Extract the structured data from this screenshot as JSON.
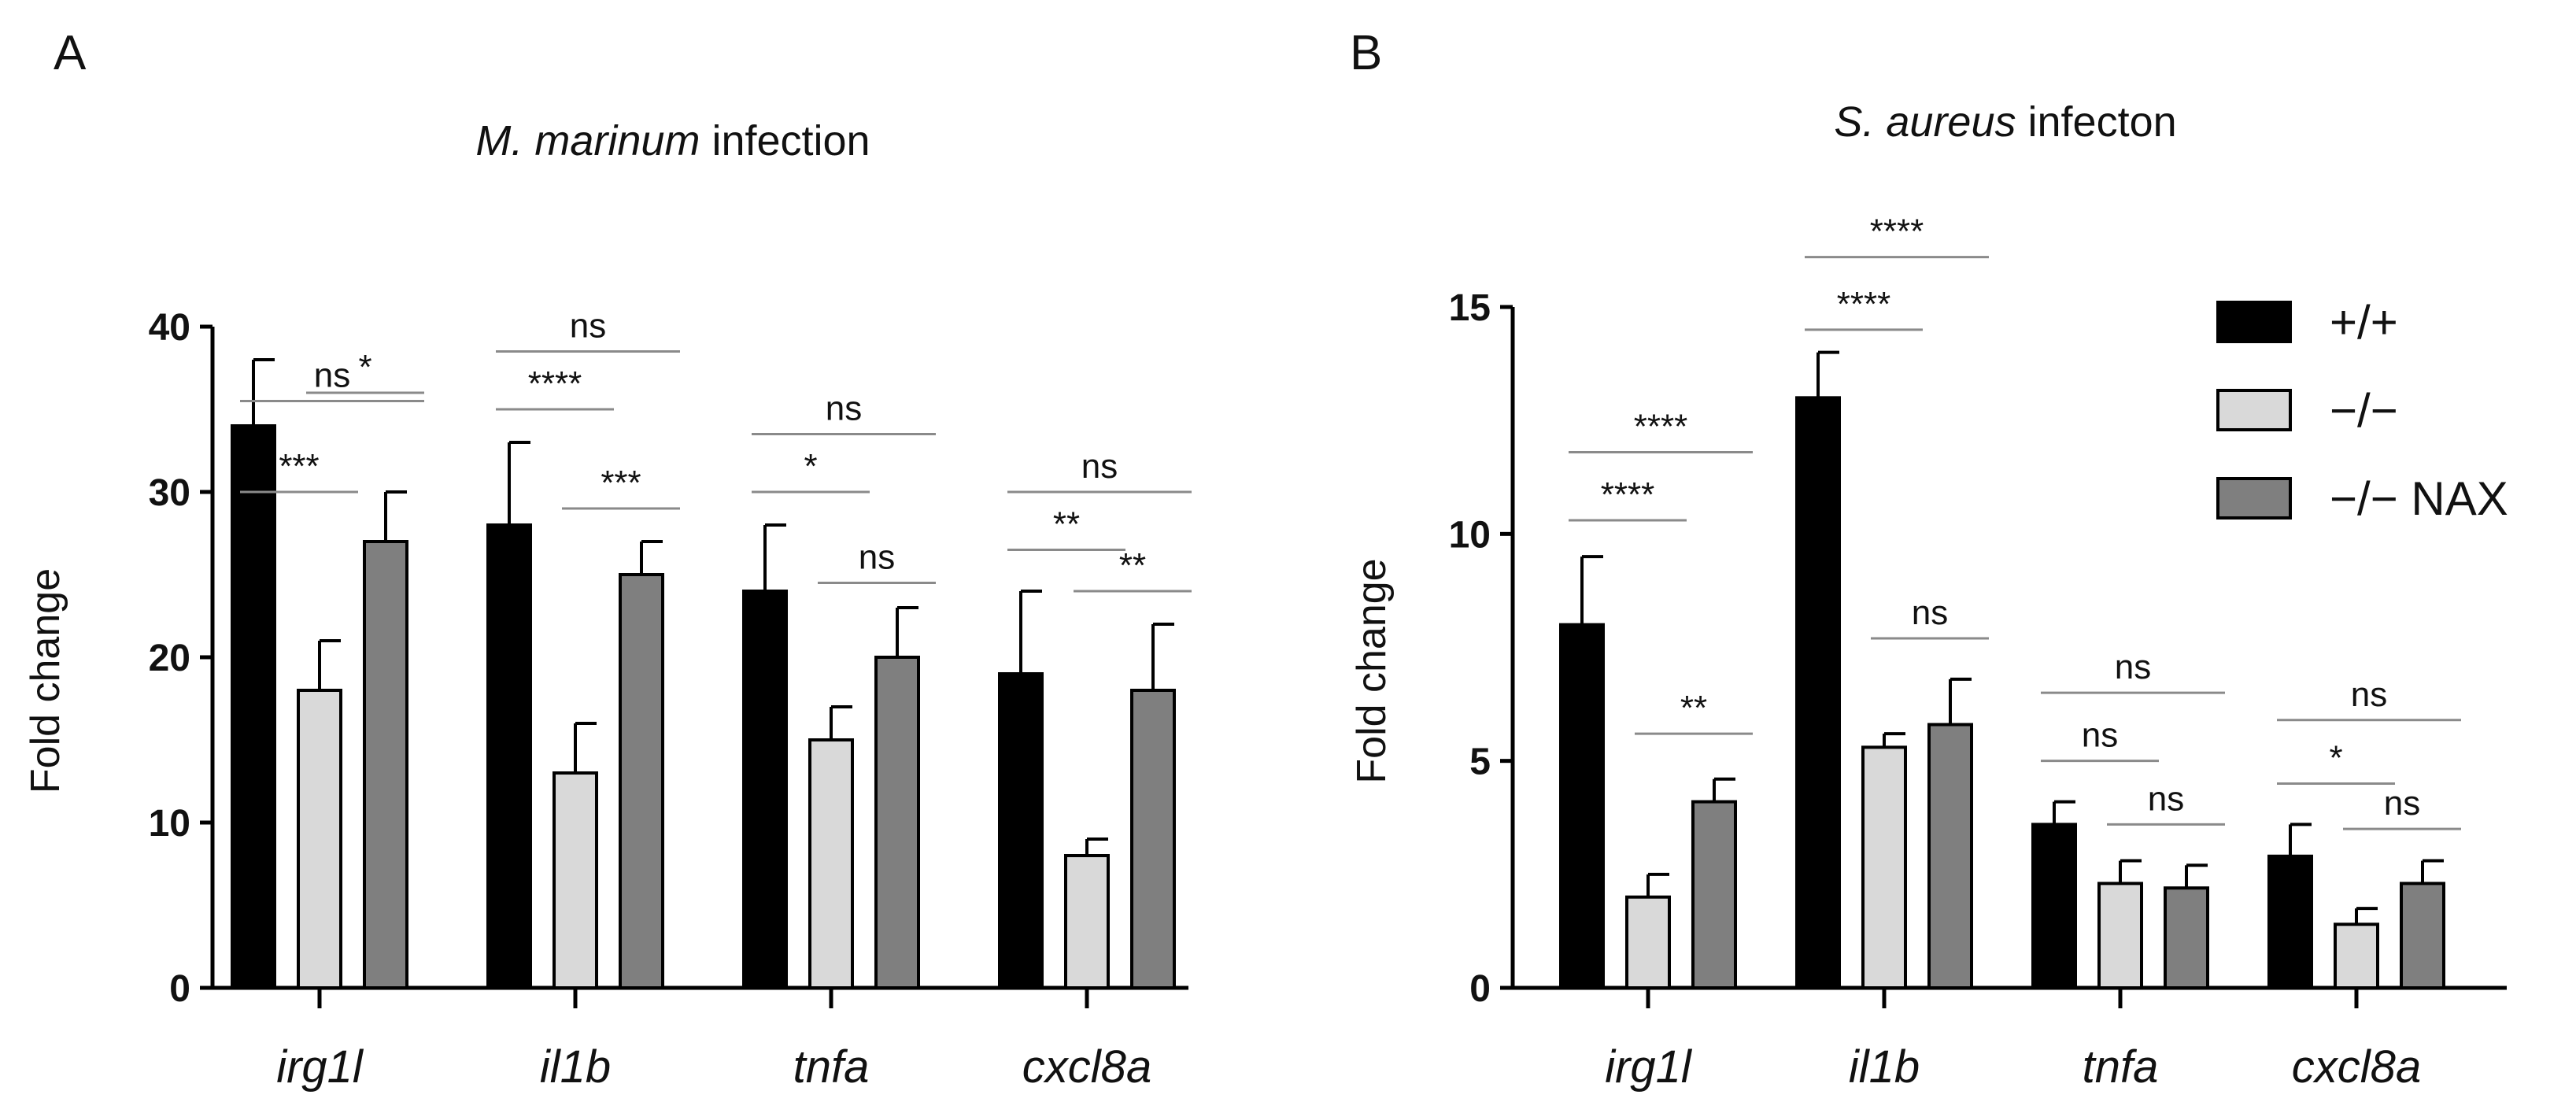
{
  "colors": {
    "wt": "#000000",
    "ko": "#d9d9d9",
    "ko_nax": "#7f7f7f",
    "axis": "#000000",
    "bracket": "#8a8a8a"
  },
  "chart_data": [
    {
      "panel": "A",
      "type": "bar",
      "title_italic": "M. marinum",
      "title_rest": " infection",
      "xlabel": "",
      "ylabel": "Fold change",
      "ylim": [
        0,
        40
      ],
      "yticks": [
        0,
        10,
        20,
        30,
        40
      ],
      "categories": [
        "irg1l",
        "il1b",
        "tnfa",
        "cxcl8a"
      ],
      "series": [
        {
          "name": "+/+",
          "values": [
            34,
            28,
            24,
            19
          ],
          "errors": [
            4,
            5,
            4,
            5
          ]
        },
        {
          "name": "−/−",
          "values": [
            18,
            13,
            15,
            8
          ],
          "errors": [
            3,
            3,
            2,
            1
          ]
        },
        {
          "name": "−/− NAX",
          "values": [
            27,
            25,
            20,
            18
          ],
          "errors": [
            3,
            2,
            3,
            4
          ]
        }
      ],
      "significance": [
        {
          "category": 0,
          "from": 0,
          "to": 1,
          "label": "***",
          "level": 30
        },
        {
          "category": 0,
          "from": 0,
          "to": 2,
          "label": "ns",
          "level": 35.5
        },
        {
          "category": 0,
          "from": 1,
          "to": 2,
          "label": "*",
          "level": 36.0
        },
        {
          "category": 1,
          "from": 0,
          "to": 1,
          "label": "****",
          "level": 35.0
        },
        {
          "category": 1,
          "from": 0,
          "to": 2,
          "label": "ns",
          "level": 38.5
        },
        {
          "category": 1,
          "from": 1,
          "to": 2,
          "label": "***",
          "level": 29.0
        },
        {
          "category": 2,
          "from": 0,
          "to": 1,
          "label": "*",
          "level": 30.0
        },
        {
          "category": 2,
          "from": 0,
          "to": 2,
          "label": "ns",
          "level": 33.5
        },
        {
          "category": 2,
          "from": 1,
          "to": 2,
          "label": "ns",
          "level": 24.5
        },
        {
          "category": 3,
          "from": 0,
          "to": 1,
          "label": "**",
          "level": 26.5
        },
        {
          "category": 3,
          "from": 0,
          "to": 2,
          "label": "ns",
          "level": 30.0
        },
        {
          "category": 3,
          "from": 1,
          "to": 2,
          "label": "**",
          "level": 24.0
        }
      ]
    },
    {
      "panel": "B",
      "type": "bar",
      "title_italic": "S. aureus",
      "title_rest": " infecton",
      "xlabel": "",
      "ylabel": "Fold change",
      "ylim": [
        0,
        15
      ],
      "yticks": [
        0,
        5,
        10,
        15
      ],
      "categories": [
        "irg1l",
        "il1b",
        "tnfa",
        "cxcl8a"
      ],
      "series": [
        {
          "name": "+/+",
          "values": [
            8.0,
            13.0,
            3.6,
            2.9
          ],
          "errors": [
            1.5,
            1.0,
            0.5,
            0.7
          ]
        },
        {
          "name": "−/−",
          "values": [
            2.0,
            5.3,
            2.3,
            1.4
          ],
          "errors": [
            0.5,
            0.3,
            0.5,
            0.35
          ]
        },
        {
          "name": "−/− NAX",
          "values": [
            4.1,
            5.8,
            2.2,
            2.3
          ],
          "errors": [
            0.5,
            1.0,
            0.5,
            0.5
          ]
        }
      ],
      "significance": [
        {
          "category": 0,
          "from": 0,
          "to": 1,
          "label": "****",
          "level": 10.3
        },
        {
          "category": 0,
          "from": 0,
          "to": 2,
          "label": "****",
          "level": 11.8
        },
        {
          "category": 0,
          "from": 1,
          "to": 2,
          "label": "**",
          "level": 5.6
        },
        {
          "category": 1,
          "from": 0,
          "to": 1,
          "label": "****",
          "level": 14.5
        },
        {
          "category": 1,
          "from": 0,
          "to": 2,
          "label": "****",
          "level": 16.1
        },
        {
          "category": 1,
          "from": 1,
          "to": 2,
          "label": "ns",
          "level": 7.7
        },
        {
          "category": 2,
          "from": 0,
          "to": 1,
          "label": "ns",
          "level": 5.0
        },
        {
          "category": 2,
          "from": 0,
          "to": 2,
          "label": "ns",
          "level": 6.5
        },
        {
          "category": 2,
          "from": 1,
          "to": 2,
          "label": "ns",
          "level": 3.6
        },
        {
          "category": 3,
          "from": 0,
          "to": 1,
          "label": "*",
          "level": 4.5
        },
        {
          "category": 3,
          "from": 0,
          "to": 2,
          "label": "ns",
          "level": 5.9
        },
        {
          "category": 3,
          "from": 1,
          "to": 2,
          "label": "ns",
          "level": 3.5
        }
      ]
    }
  ],
  "legend": {
    "items": [
      {
        "label": "+/+",
        "series": 0
      },
      {
        "label": "−/−",
        "series": 1
      },
      {
        "label": "−/− NAX",
        "series": 2
      }
    ]
  }
}
